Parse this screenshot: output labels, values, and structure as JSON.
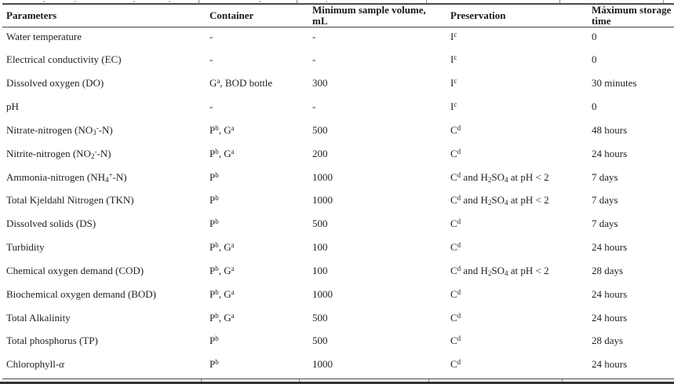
{
  "accent_colors": {
    "text": "#1f1f1f",
    "rule": "#4a4a4a",
    "bottom_rule": "#333333",
    "background": "#ffffff"
  },
  "table": {
    "column_keys": [
      "parameters",
      "container",
      "min-sample-volume",
      "preservation",
      "max-storage-time"
    ],
    "columns": [
      {
        "label": "Parameters",
        "lines": [
          "Parameters"
        ]
      },
      {
        "label": "Container",
        "lines": [
          "Container"
        ]
      },
      {
        "label": "Minimum sample volume, mL",
        "lines": [
          "Minimum sample volume,",
          "mL"
        ]
      },
      {
        "label": "Preservation",
        "lines": [
          "Preservation"
        ]
      },
      {
        "label": "Máximum storage time",
        "lines": [
          "Máximum storage",
          "time"
        ]
      }
    ],
    "rows": [
      {
        "cells": [
          [
            "Water temperature"
          ],
          [
            "-"
          ],
          [
            "-"
          ],
          [
            "I",
            [
              "c",
              "sup"
            ]
          ],
          [
            "0"
          ]
        ]
      },
      {
        "cells": [
          [
            "Electrical conductivity (EC)"
          ],
          [
            "-"
          ],
          [
            "-"
          ],
          [
            "I",
            [
              "c",
              "sup"
            ]
          ],
          [
            "0"
          ]
        ]
      },
      {
        "cells": [
          [
            "Dissolved oxygen (DO)"
          ],
          [
            "G",
            [
              "a",
              "sup"
            ],
            ", BOD bottle"
          ],
          [
            "300"
          ],
          [
            "I",
            [
              "c",
              "sup"
            ]
          ],
          [
            "30 minutes"
          ]
        ]
      },
      {
        "cells": [
          [
            "pH"
          ],
          [
            "-"
          ],
          [
            "-"
          ],
          [
            "I",
            [
              "c",
              "sup"
            ]
          ],
          [
            "0"
          ]
        ]
      },
      {
        "cells": [
          [
            "Nitrate-nitrogen (NO",
            [
              "3",
              "sub"
            ],
            [
              "-",
              "sup"
            ],
            "-N)"
          ],
          [
            "P",
            [
              "b",
              "sup"
            ],
            ", G",
            [
              "a",
              "sup"
            ]
          ],
          [
            "500"
          ],
          [
            "C",
            [
              "d",
              "sup"
            ]
          ],
          [
            "48 hours"
          ]
        ]
      },
      {
        "cells": [
          [
            "Nitrite-nitrogen (NO",
            [
              "2",
              "sub"
            ],
            [
              "-",
              "sup"
            ],
            "-N)"
          ],
          [
            "P",
            [
              "b",
              "sup"
            ],
            ", G",
            [
              "a",
              "sup"
            ]
          ],
          [
            "200"
          ],
          [
            "C",
            [
              "d",
              "sup"
            ]
          ],
          [
            "24 hours"
          ]
        ]
      },
      {
        "cells": [
          [
            "Ammonia-nitrogen (NH",
            [
              "4",
              "sub"
            ],
            [
              "+",
              "sup"
            ],
            "-N)"
          ],
          [
            "P",
            [
              "b",
              "sup"
            ]
          ],
          [
            "1000"
          ],
          [
            "C",
            [
              "d",
              "sup"
            ],
            " and H",
            [
              "2",
              "sub"
            ],
            "SO",
            [
              "4",
              "sub"
            ],
            " at pH < 2"
          ],
          [
            "7 days"
          ]
        ]
      },
      {
        "cells": [
          [
            "Total Kjeldahl Nitrogen (TKN)"
          ],
          [
            "P",
            [
              "b",
              "sup"
            ]
          ],
          [
            "1000"
          ],
          [
            "C",
            [
              "d",
              "sup"
            ],
            " and H",
            [
              "2",
              "sub"
            ],
            "SO",
            [
              "4",
              "sub"
            ],
            " at pH < 2"
          ],
          [
            "7 days"
          ]
        ]
      },
      {
        "cells": [
          [
            "Dissolved solids (DS)"
          ],
          [
            "P",
            [
              "b",
              "sup"
            ]
          ],
          [
            "500"
          ],
          [
            "C",
            [
              "d",
              "sup"
            ]
          ],
          [
            "7 days"
          ]
        ]
      },
      {
        "cells": [
          [
            "Turbidity"
          ],
          [
            "P",
            [
              "b",
              "sup"
            ],
            ", G",
            [
              "a",
              "sup"
            ]
          ],
          [
            "100"
          ],
          [
            "C",
            [
              "d",
              "sup"
            ]
          ],
          [
            "24 hours"
          ]
        ]
      },
      {
        "cells": [
          [
            "Chemical oxygen demand (COD)"
          ],
          [
            "P",
            [
              "b",
              "sup"
            ],
            ", G",
            [
              "a",
              "sup"
            ]
          ],
          [
            "100"
          ],
          [
            "C",
            [
              "d",
              "sup"
            ],
            " and H",
            [
              "2",
              "sub"
            ],
            "SO",
            [
              "4",
              "sub"
            ],
            " at pH < 2"
          ],
          [
            "28 days"
          ]
        ]
      },
      {
        "cells": [
          [
            "Biochemical oxygen demand (BOD)"
          ],
          [
            "P",
            [
              "b",
              "sup"
            ],
            ", G",
            [
              "a",
              "sup"
            ]
          ],
          [
            "1000"
          ],
          [
            "C",
            [
              "d",
              "sup"
            ]
          ],
          [
            "24 hours"
          ]
        ]
      },
      {
        "cells": [
          [
            "Total Alkalinity"
          ],
          [
            "P",
            [
              "b",
              "sup"
            ],
            ", G",
            [
              "a",
              "sup"
            ]
          ],
          [
            "500"
          ],
          [
            "C",
            [
              "d",
              "sup"
            ]
          ],
          [
            "24 hours"
          ]
        ]
      },
      {
        "cells": [
          [
            "Total phosphorus (TP)"
          ],
          [
            "P",
            [
              "b",
              "sup"
            ]
          ],
          [
            "500"
          ],
          [
            "C",
            [
              "d",
              "sup"
            ]
          ],
          [
            "28 days"
          ]
        ]
      },
      {
        "cells": [
          [
            "Chlorophyll-",
            [
              "α",
              "i"
            ]
          ],
          [
            "P",
            [
              "b",
              "sup"
            ]
          ],
          [
            "1000"
          ],
          [
            "C",
            [
              "d",
              "sup"
            ]
          ],
          [
            "24 hours"
          ]
        ]
      }
    ]
  }
}
